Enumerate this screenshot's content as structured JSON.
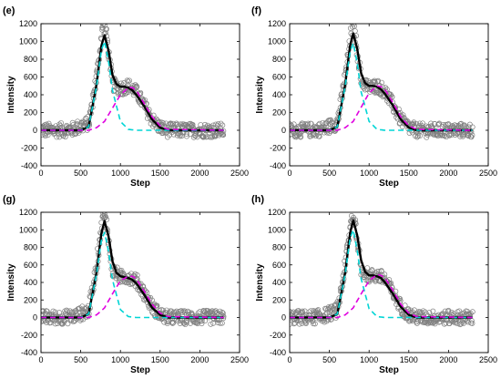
{
  "chart_data": [
    {
      "type": "scatter",
      "panel_label": "(e)",
      "xlabel": "Step",
      "ylabel": "Intensity",
      "xlim": [
        0,
        2500
      ],
      "ylim": [
        -400,
        1200
      ],
      "xticks": [
        "0",
        "500",
        "1000",
        "1500",
        "2000",
        "2500"
      ],
      "yticks": [
        "-400",
        "-200",
        "0",
        "200",
        "400",
        "600",
        "800",
        "1000",
        "1200"
      ],
      "series": [
        {
          "style": "scatter",
          "color": "#808080",
          "x": [
            0,
            200,
            400,
            600,
            700,
            780,
            820,
            900,
            1000,
            1100,
            1200,
            1300,
            1400,
            1500,
            1600,
            2000,
            2300
          ],
          "y": [
            0,
            0,
            10,
            80,
            600,
            1180,
            1100,
            520,
            470,
            500,
            430,
            280,
            120,
            30,
            0,
            0,
            0
          ]
        },
        {
          "style": "solid",
          "color": "#000000",
          "x": [
            0,
            500,
            600,
            700,
            760,
            800,
            850,
            900,
            950,
            1000,
            1050,
            1100,
            1150,
            1200,
            1300,
            1400,
            1500,
            1600,
            2300
          ],
          "y": [
            0,
            0,
            40,
            520,
            950,
            1070,
            900,
            620,
            520,
            490,
            490,
            480,
            450,
            400,
            270,
            120,
            30,
            0,
            0
          ]
        },
        {
          "style": "dashed",
          "color": "#00d5d5",
          "x": [
            0,
            500,
            600,
            700,
            760,
            800,
            850,
            900,
            1000,
            1100,
            1200,
            1300,
            2300
          ],
          "y": [
            0,
            0,
            40,
            500,
            900,
            1000,
            780,
            450,
            100,
            10,
            0,
            0,
            0
          ]
        },
        {
          "style": "dashed",
          "color": "#e000e0",
          "x": [
            0,
            600,
            700,
            800,
            900,
            1000,
            1100,
            1150,
            1200,
            1300,
            1400,
            1500,
            1600,
            2300
          ],
          "y": [
            0,
            0,
            30,
            100,
            250,
            400,
            480,
            480,
            450,
            300,
            150,
            50,
            10,
            0
          ]
        }
      ]
    },
    {
      "type": "scatter",
      "panel_label": "(f)",
      "xlabel": "Step",
      "ylabel": "Intensity",
      "xlim": [
        0,
        2500
      ],
      "ylim": [
        -400,
        1200
      ],
      "xticks": [
        "0",
        "500",
        "1000",
        "1500",
        "2000",
        "2500"
      ],
      "yticks": [
        "-400",
        "-200",
        "0",
        "200",
        "400",
        "600",
        "800",
        "1000",
        "1200"
      ],
      "series": [
        {
          "style": "scatter",
          "color": "#808080",
          "x": [
            0,
            200,
            400,
            600,
            700,
            780,
            820,
            900,
            1000,
            1100,
            1200,
            1300,
            1400,
            1500,
            1600,
            2000,
            2300
          ],
          "y": [
            0,
            0,
            10,
            80,
            600,
            1150,
            1100,
            560,
            480,
            500,
            440,
            280,
            120,
            30,
            0,
            0,
            0
          ]
        },
        {
          "style": "solid",
          "color": "#000000",
          "x": [
            0,
            500,
            600,
            700,
            760,
            800,
            850,
            900,
            950,
            1000,
            1050,
            1100,
            1150,
            1200,
            1300,
            1400,
            1500,
            1600,
            2300
          ],
          "y": [
            0,
            0,
            40,
            520,
            950,
            1090,
            920,
            640,
            530,
            500,
            500,
            490,
            460,
            410,
            280,
            120,
            30,
            0,
            0
          ]
        },
        {
          "style": "dashed",
          "color": "#00d5d5",
          "x": [
            0,
            500,
            600,
            700,
            760,
            800,
            850,
            900,
            1000,
            1100,
            1200,
            1300,
            2300
          ],
          "y": [
            0,
            0,
            40,
            500,
            880,
            980,
            760,
            430,
            100,
            10,
            0,
            0,
            0
          ]
        },
        {
          "style": "dashed",
          "color": "#e000e0",
          "x": [
            0,
            600,
            700,
            800,
            900,
            1000,
            1100,
            1150,
            1200,
            1300,
            1400,
            1500,
            1600,
            2300
          ],
          "y": [
            0,
            0,
            30,
            100,
            260,
            420,
            500,
            490,
            460,
            310,
            150,
            50,
            10,
            0
          ]
        }
      ]
    },
    {
      "type": "scatter",
      "panel_label": "(g)",
      "xlabel": "Step",
      "ylabel": "Intensity",
      "xlim": [
        0,
        2500
      ],
      "ylim": [
        -400,
        1200
      ],
      "xticks": [
        "0",
        "500",
        "1000",
        "1500",
        "2000",
        "2500"
      ],
      "yticks": [
        "-400",
        "-200",
        "0",
        "200",
        "400",
        "600",
        "800",
        "1000",
        "1200"
      ],
      "series": [
        {
          "style": "scatter",
          "color": "#808080",
          "x": [
            0,
            200,
            400,
            600,
            700,
            780,
            820,
            900,
            1000,
            1100,
            1200,
            1300,
            1400,
            1500,
            1600,
            2000,
            2300
          ],
          "y": [
            0,
            0,
            10,
            80,
            600,
            1170,
            1100,
            540,
            460,
            470,
            420,
            280,
            120,
            30,
            0,
            0,
            0
          ]
        },
        {
          "style": "solid",
          "color": "#000000",
          "x": [
            0,
            500,
            600,
            700,
            760,
            800,
            850,
            900,
            950,
            1000,
            1050,
            1100,
            1150,
            1200,
            1300,
            1400,
            1500,
            1600,
            2300
          ],
          "y": [
            0,
            0,
            40,
            520,
            960,
            1100,
            930,
            640,
            510,
            470,
            460,
            450,
            430,
            390,
            260,
            110,
            30,
            0,
            0
          ]
        },
        {
          "style": "dashed",
          "color": "#00d5d5",
          "x": [
            0,
            500,
            600,
            700,
            760,
            800,
            850,
            900,
            1000,
            1100,
            1200,
            1300,
            2300
          ],
          "y": [
            0,
            0,
            40,
            500,
            880,
            970,
            760,
            430,
            90,
            10,
            0,
            0,
            0
          ]
        },
        {
          "style": "dashed",
          "color": "#e000e0",
          "x": [
            0,
            600,
            700,
            800,
            900,
            1000,
            1100,
            1150,
            1200,
            1300,
            1400,
            1500,
            1600,
            2300
          ],
          "y": [
            0,
            0,
            30,
            110,
            270,
            420,
            470,
            470,
            440,
            300,
            150,
            50,
            10,
            0
          ]
        }
      ]
    },
    {
      "type": "scatter",
      "panel_label": "(h)",
      "xlabel": "Step",
      "ylabel": "Intensity",
      "xlim": [
        0,
        2500
      ],
      "ylim": [
        -400,
        1200
      ],
      "xticks": [
        "0",
        "500",
        "1000",
        "1500",
        "2000",
        "2500"
      ],
      "yticks": [
        "-400",
        "-200",
        "0",
        "200",
        "400",
        "600",
        "800",
        "1000",
        "1200"
      ],
      "series": [
        {
          "style": "scatter",
          "color": "#808080",
          "x": [
            0,
            200,
            400,
            600,
            700,
            780,
            820,
            900,
            1000,
            1100,
            1200,
            1300,
            1400,
            1500,
            1600,
            2000,
            2300
          ],
          "y": [
            0,
            0,
            10,
            80,
            600,
            1150,
            1100,
            560,
            470,
            480,
            440,
            280,
            120,
            30,
            0,
            0,
            0
          ]
        },
        {
          "style": "solid",
          "color": "#000000",
          "x": [
            0,
            500,
            600,
            700,
            760,
            800,
            850,
            900,
            950,
            1000,
            1050,
            1100,
            1150,
            1200,
            1300,
            1400,
            1500,
            1600,
            2300
          ],
          "y": [
            0,
            0,
            40,
            520,
            960,
            1110,
            940,
            650,
            520,
            480,
            480,
            470,
            450,
            400,
            270,
            120,
            30,
            0,
            0
          ]
        },
        {
          "style": "dashed",
          "color": "#00d5d5",
          "x": [
            0,
            500,
            600,
            700,
            760,
            800,
            850,
            900,
            1000,
            1100,
            1200,
            1300,
            2300
          ],
          "y": [
            0,
            0,
            40,
            500,
            900,
            1000,
            770,
            440,
            100,
            10,
            0,
            0,
            0
          ]
        },
        {
          "style": "dashed",
          "color": "#e000e0",
          "x": [
            0,
            600,
            700,
            800,
            900,
            1000,
            1100,
            1150,
            1200,
            1300,
            1400,
            1500,
            1600,
            2300
          ],
          "y": [
            0,
            0,
            30,
            110,
            270,
            420,
            490,
            480,
            450,
            310,
            150,
            50,
            10,
            0
          ]
        }
      ]
    }
  ]
}
